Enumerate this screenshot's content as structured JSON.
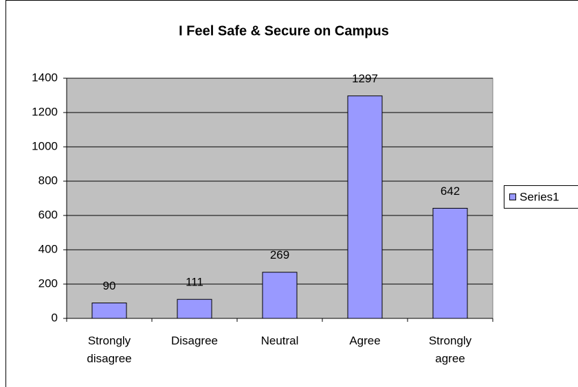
{
  "chart_data": {
    "type": "bar",
    "title": "I Feel Safe & Secure on Campus",
    "categories": [
      "Strongly disagree",
      "Disagree",
      "Neutral",
      "Agree",
      "Strongly agree"
    ],
    "series": [
      {
        "name": "Series1",
        "color": "#9999ff",
        "values": [
          90,
          111,
          269,
          1297,
          642
        ]
      }
    ],
    "ylim": [
      0,
      1400
    ],
    "yticks": [
      0,
      200,
      400,
      600,
      800,
      1000,
      1200,
      1400
    ],
    "grid": true,
    "legend": "right"
  }
}
